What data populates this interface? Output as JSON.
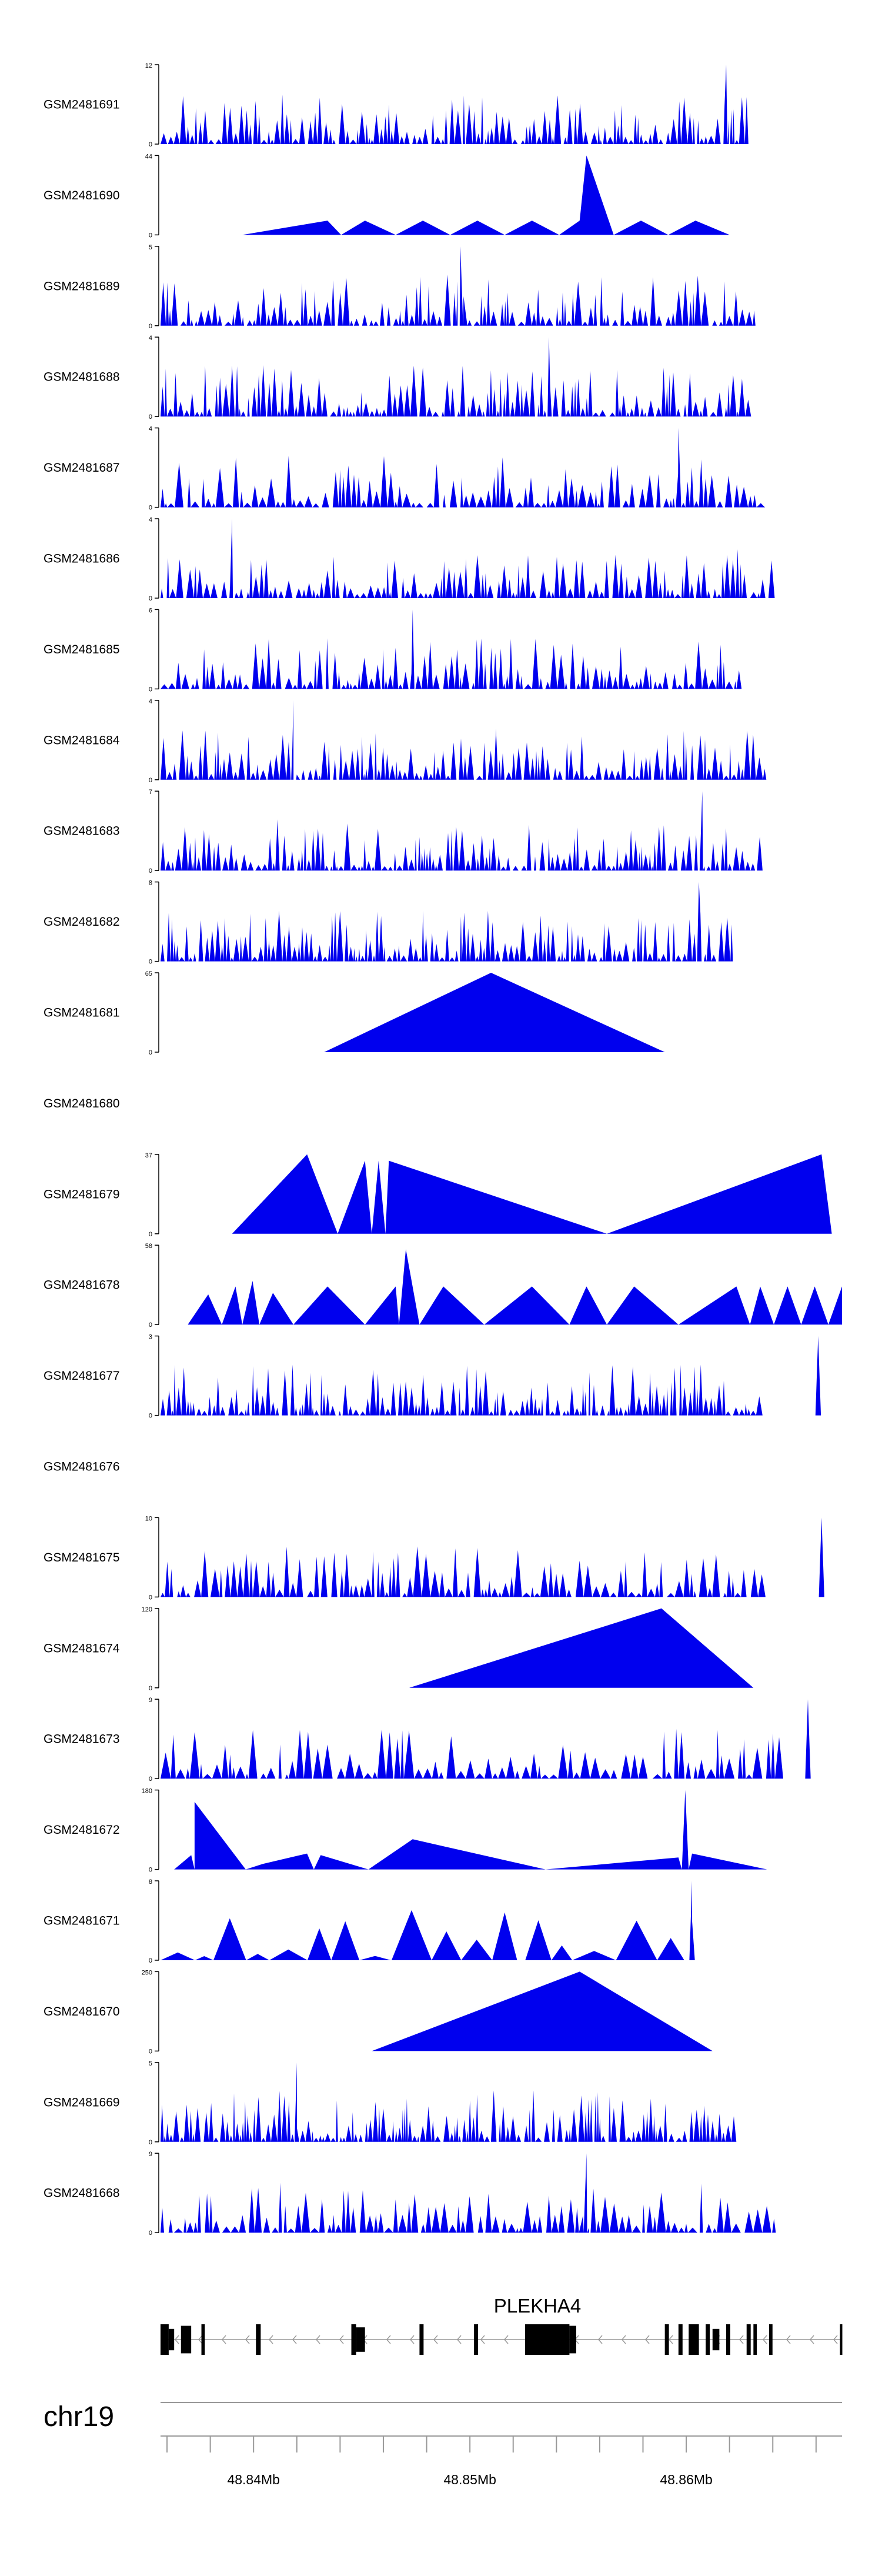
{
  "chart_data": {
    "type": "area",
    "title": "",
    "colors": {
      "fill": "#0000ee",
      "axis": "#000000",
      "gene": "#000000",
      "intron": "#999999"
    },
    "x_range_mb": [
      48.8357,
      48.8672
    ],
    "tracks": [
      {
        "name": "GSM2481691",
        "ymax": 12,
        "seed": 11,
        "n": 120,
        "maxpos": 0.83,
        "kind": "dense"
      },
      {
        "name": "GSM2481690",
        "ymax": 44,
        "seed": 12,
        "kind": "sparse",
        "peaks": [
          [
            0.12,
            0
          ],
          [
            0.245,
            0.18
          ],
          [
            0.265,
            0
          ],
          [
            0.3,
            0.18
          ],
          [
            0.345,
            0
          ],
          [
            0.385,
            0.18
          ],
          [
            0.425,
            0
          ],
          [
            0.465,
            0.18
          ],
          [
            0.505,
            0
          ],
          [
            0.545,
            0.18
          ],
          [
            0.585,
            0
          ],
          [
            0.615,
            0.18
          ],
          [
            0.625,
            1.0
          ],
          [
            0.665,
            0
          ],
          [
            0.705,
            0.18
          ],
          [
            0.745,
            0
          ],
          [
            0.785,
            0.18
          ],
          [
            0.835,
            0
          ]
        ]
      },
      {
        "name": "GSM2481689",
        "ymax": 5,
        "seed": 13,
        "n": 110,
        "maxpos": 0.44,
        "kind": "dense"
      },
      {
        "name": "GSM2481688",
        "ymax": 4,
        "seed": 14,
        "n": 120,
        "maxpos": 0.57,
        "kind": "dense"
      },
      {
        "name": "GSM2481687",
        "ymax": 4,
        "seed": 15,
        "n": 95,
        "maxpos": 0.76,
        "kind": "dense"
      },
      {
        "name": "GSM2481686",
        "ymax": 4,
        "seed": 16,
        "n": 110,
        "maxpos": 0.105,
        "kind": "dense"
      },
      {
        "name": "GSM2481685",
        "ymax": 6,
        "seed": 17,
        "n": 105,
        "maxpos": 0.37,
        "kind": "dense"
      },
      {
        "name": "GSM2481684",
        "ymax": 4,
        "seed": 18,
        "n": 120,
        "maxpos": 0.195,
        "kind": "dense"
      },
      {
        "name": "GSM2481683",
        "ymax": 7,
        "seed": 19,
        "n": 125,
        "maxpos": 0.795,
        "kind": "dense"
      },
      {
        "name": "GSM2481682",
        "ymax": 8,
        "seed": 20,
        "n": 125,
        "maxpos": 0.79,
        "kind": "dense"
      },
      {
        "name": "GSM2481681",
        "ymax": 65,
        "seed": 21,
        "kind": "sparse",
        "peaks": [
          [
            0.24,
            0
          ],
          [
            0.485,
            1.0
          ],
          [
            0.74,
            0
          ]
        ]
      },
      {
        "name": "GSM2481680",
        "empty": true
      },
      {
        "name": "GSM2481679",
        "ymax": 37,
        "seed": 23,
        "kind": "sparse",
        "peaks": [
          [
            0.105,
            0
          ],
          [
            0.215,
            1.0
          ],
          [
            0.26,
            0
          ],
          [
            0.3,
            0.92
          ],
          [
            0.31,
            0
          ],
          [
            0.32,
            0.92
          ],
          [
            0.33,
            0
          ],
          [
            0.335,
            0.92
          ],
          [
            0.655,
            0
          ],
          [
            0.97,
            1.0
          ],
          [
            0.985,
            0
          ]
        ]
      },
      {
        "name": "GSM2481678",
        "ymax": 58,
        "seed": 24,
        "kind": "sparse",
        "peaks": [
          [
            0.04,
            0
          ],
          [
            0.07,
            0.38
          ],
          [
            0.09,
            0
          ],
          [
            0.11,
            0.48
          ],
          [
            0.12,
            0
          ],
          [
            0.135,
            0.55
          ],
          [
            0.145,
            0
          ],
          [
            0.165,
            0.4
          ],
          [
            0.195,
            0
          ],
          [
            0.245,
            0.48
          ],
          [
            0.3,
            0
          ],
          [
            0.345,
            0.48
          ],
          [
            0.35,
            0
          ],
          [
            0.36,
            0.95
          ],
          [
            0.38,
            0
          ],
          [
            0.415,
            0.48
          ],
          [
            0.475,
            0
          ],
          [
            0.545,
            0.48
          ],
          [
            0.6,
            0
          ],
          [
            0.625,
            0.48
          ],
          [
            0.655,
            0
          ],
          [
            0.695,
            0.48
          ],
          [
            0.76,
            0
          ],
          [
            0.845,
            0.48
          ],
          [
            0.865,
            0
          ],
          [
            0.88,
            0.48
          ],
          [
            0.9,
            0
          ],
          [
            0.92,
            0.48
          ],
          [
            0.94,
            0
          ],
          [
            0.96,
            0.48
          ],
          [
            0.98,
            0
          ],
          [
            1.0,
            0.48
          ]
        ]
      },
      {
        "name": "GSM2481677",
        "ymax": 3,
        "seed": 25,
        "n": 130,
        "maxpos": 0.965,
        "kind": "dense"
      },
      {
        "name": "GSM2481676",
        "empty": true
      },
      {
        "name": "GSM2481675",
        "ymax": 10,
        "seed": 27,
        "n": 95,
        "maxpos": 0.97,
        "kind": "dense"
      },
      {
        "name": "GSM2481674",
        "ymax": 120,
        "seed": 28,
        "kind": "sparse",
        "peaks": [
          [
            0.365,
            0
          ],
          [
            0.735,
            1.0
          ],
          [
            0.87,
            0
          ]
        ]
      },
      {
        "name": "GSM2481673",
        "ymax": 9,
        "seed": 29,
        "n": 80,
        "maxpos": 0.95,
        "kind": "dense"
      },
      {
        "name": "GSM2481672",
        "ymax": 180,
        "seed": 30,
        "kind": "sparse",
        "peaks": [
          [
            0.02,
            0
          ],
          [
            0.045,
            0.18
          ],
          [
            0.05,
            0
          ],
          [
            0.05,
            0.85
          ],
          [
            0.125,
            0
          ],
          [
            0.15,
            0.07
          ],
          [
            0.215,
            0.2
          ],
          [
            0.225,
            0
          ],
          [
            0.235,
            0.18
          ],
          [
            0.305,
            0
          ],
          [
            0.37,
            0.38
          ],
          [
            0.565,
            0
          ],
          [
            0.76,
            0.15
          ],
          [
            0.765,
            0
          ],
          [
            0.77,
            1.0
          ],
          [
            0.775,
            0
          ],
          [
            0.78,
            0.2
          ],
          [
            0.89,
            0
          ]
        ]
      },
      {
        "name": "GSM2481671",
        "ymax": 8,
        "seed": 31,
        "kind": "mixed",
        "n": 18,
        "maxpos": 0.78
      },
      {
        "name": "GSM2481670",
        "ymax": 250,
        "seed": 32,
        "kind": "sparse",
        "peaks": [
          [
            0.31,
            0
          ],
          [
            0.615,
            1.0
          ],
          [
            0.81,
            0
          ]
        ]
      },
      {
        "name": "GSM2481669",
        "ymax": 5,
        "seed": 33,
        "n": 130,
        "maxpos": 0.2,
        "kind": "dense"
      },
      {
        "name": "GSM2481668",
        "ymax": 9,
        "seed": 34,
        "n": 90,
        "maxpos": 0.625,
        "kind": "dense"
      }
    ],
    "gene": {
      "label": "PLEKHA4",
      "start_frac": 0.0,
      "end_frac": 1.0,
      "exons": [
        [
          0.0,
          0.012,
          1
        ],
        [
          0.012,
          0.02,
          0.7
        ],
        [
          0.03,
          0.045,
          0.9
        ],
        [
          0.06,
          0.065,
          1
        ],
        [
          0.14,
          0.147,
          1
        ],
        [
          0.28,
          0.287,
          1
        ],
        [
          0.287,
          0.3,
          0.8
        ],
        [
          0.38,
          0.386,
          1
        ],
        [
          0.46,
          0.466,
          1
        ],
        [
          0.535,
          0.6,
          1
        ],
        [
          0.6,
          0.61,
          0.9
        ],
        [
          0.74,
          0.746,
          1
        ],
        [
          0.76,
          0.766,
          1
        ],
        [
          0.775,
          0.79,
          1
        ],
        [
          0.8,
          0.806,
          1
        ],
        [
          0.81,
          0.82,
          0.7
        ],
        [
          0.83,
          0.836,
          1
        ],
        [
          0.86,
          0.866,
          1
        ],
        [
          0.87,
          0.875,
          1
        ],
        [
          0.893,
          0.898,
          1
        ],
        [
          0.997,
          1.0,
          1
        ]
      ]
    },
    "chromosome": "chr19",
    "axis": {
      "ticks_mb": [
        48.836,
        48.838,
        48.84,
        48.842,
        48.844,
        48.846,
        48.848,
        48.85,
        48.852,
        48.854,
        48.856,
        48.858,
        48.86,
        48.862,
        48.864,
        48.866
      ],
      "labels": [
        {
          "value": 48.84,
          "text": "48.84Mb"
        },
        {
          "value": 48.85,
          "text": "48.85Mb"
        },
        {
          "value": 48.86,
          "text": "48.86Mb"
        }
      ]
    }
  }
}
